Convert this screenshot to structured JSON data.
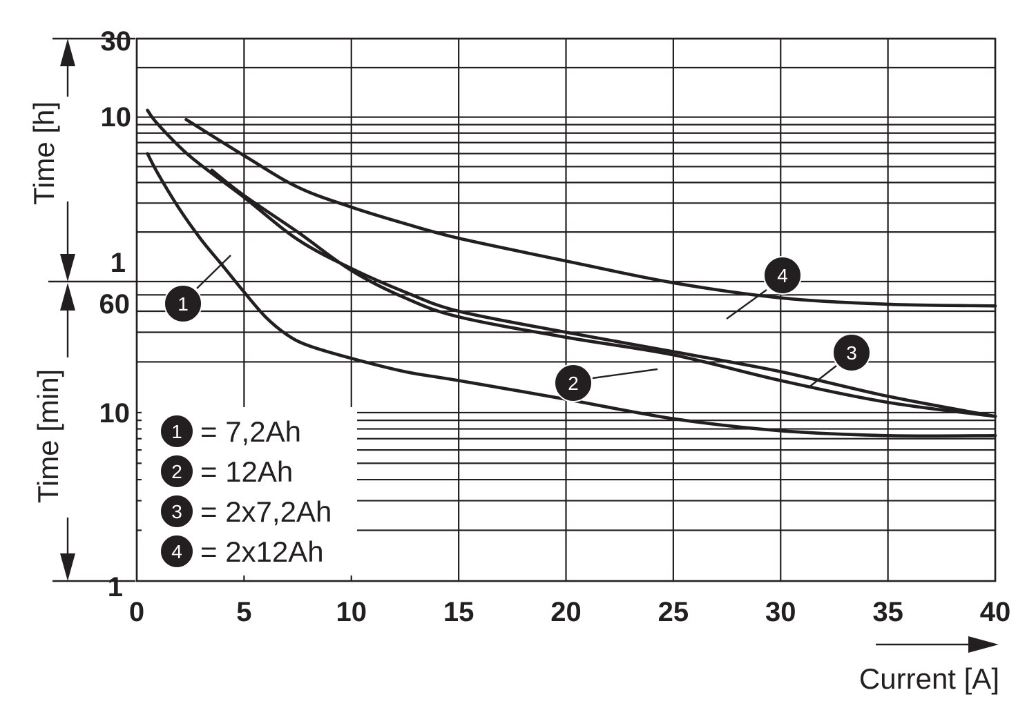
{
  "chart_data": {
    "type": "line",
    "x_axis": {
      "label": "Current [A]",
      "range": [
        0,
        40
      ],
      "ticks": [
        "0",
        "5",
        "10",
        "15",
        "20",
        "25",
        "30",
        "35",
        "40"
      ],
      "grid": true
    },
    "y_axis_hours": {
      "label": "Time [h]",
      "scale": "log",
      "range": [
        1,
        30
      ],
      "ticks": [
        "30",
        "10",
        "1"
      ]
    },
    "y_axis_minutes": {
      "label": "Time [min]",
      "scale": "log",
      "range": [
        1,
        60
      ],
      "ticks": [
        "60",
        "10",
        "1"
      ]
    },
    "series": [
      {
        "name": "7,2Ah",
        "badge": "1",
        "legend": "= 7,2Ah",
        "points": [
          [
            0.5,
            360
          ],
          [
            1.0,
            270
          ],
          [
            2.0,
            165
          ],
          [
            3.0,
            108
          ],
          [
            4.0,
            75
          ],
          [
            5.0,
            52
          ],
          [
            6.0,
            37
          ],
          [
            7.0,
            29
          ],
          [
            8.0,
            25
          ],
          [
            10.0,
            21
          ],
          [
            12.5,
            17.5
          ],
          [
            15.0,
            15.5
          ],
          [
            20.0,
            12.0
          ],
          [
            25.0,
            9.2
          ],
          [
            30.0,
            7.8
          ],
          [
            35.0,
            7.3
          ],
          [
            40.0,
            7.3
          ]
        ]
      },
      {
        "name": "12Ah",
        "badge": "2",
        "legend": "= 12Ah",
        "points": [
          [
            3.5,
            285
          ],
          [
            5.0,
            200
          ],
          [
            7.5,
            120
          ],
          [
            10.0,
            70
          ],
          [
            12.5,
            48
          ],
          [
            15.0,
            37
          ],
          [
            20.0,
            28
          ],
          [
            25.0,
            22
          ],
          [
            30.0,
            15.5
          ],
          [
            35.0,
            11.5
          ],
          [
            40.0,
            9.5
          ]
        ]
      },
      {
        "name": "2x7,2Ah",
        "badge": "3",
        "legend": "= 2x7,2Ah",
        "points": [
          [
            0.5,
            660
          ],
          [
            1.0,
            540
          ],
          [
            2.5,
            345
          ],
          [
            5.0,
            195
          ],
          [
            7.5,
            108
          ],
          [
            10.0,
            72
          ],
          [
            12.5,
            52
          ],
          [
            15.0,
            40
          ],
          [
            20.0,
            30
          ],
          [
            25.0,
            23
          ],
          [
            30.0,
            17.5
          ],
          [
            35.0,
            12.5
          ],
          [
            40.0,
            9.5
          ]
        ]
      },
      {
        "name": "2x12Ah",
        "badge": "4",
        "legend": "= 2x12Ah",
        "points": [
          [
            2.3,
            580
          ],
          [
            5.0,
            350
          ],
          [
            7.5,
            225
          ],
          [
            10.0,
            170
          ],
          [
            12.5,
            135
          ],
          [
            15.0,
            110
          ],
          [
            20.0,
            80
          ],
          [
            25.0,
            59
          ],
          [
            30.0,
            48
          ],
          [
            35.0,
            44
          ],
          [
            40.0,
            43
          ]
        ]
      }
    ]
  }
}
